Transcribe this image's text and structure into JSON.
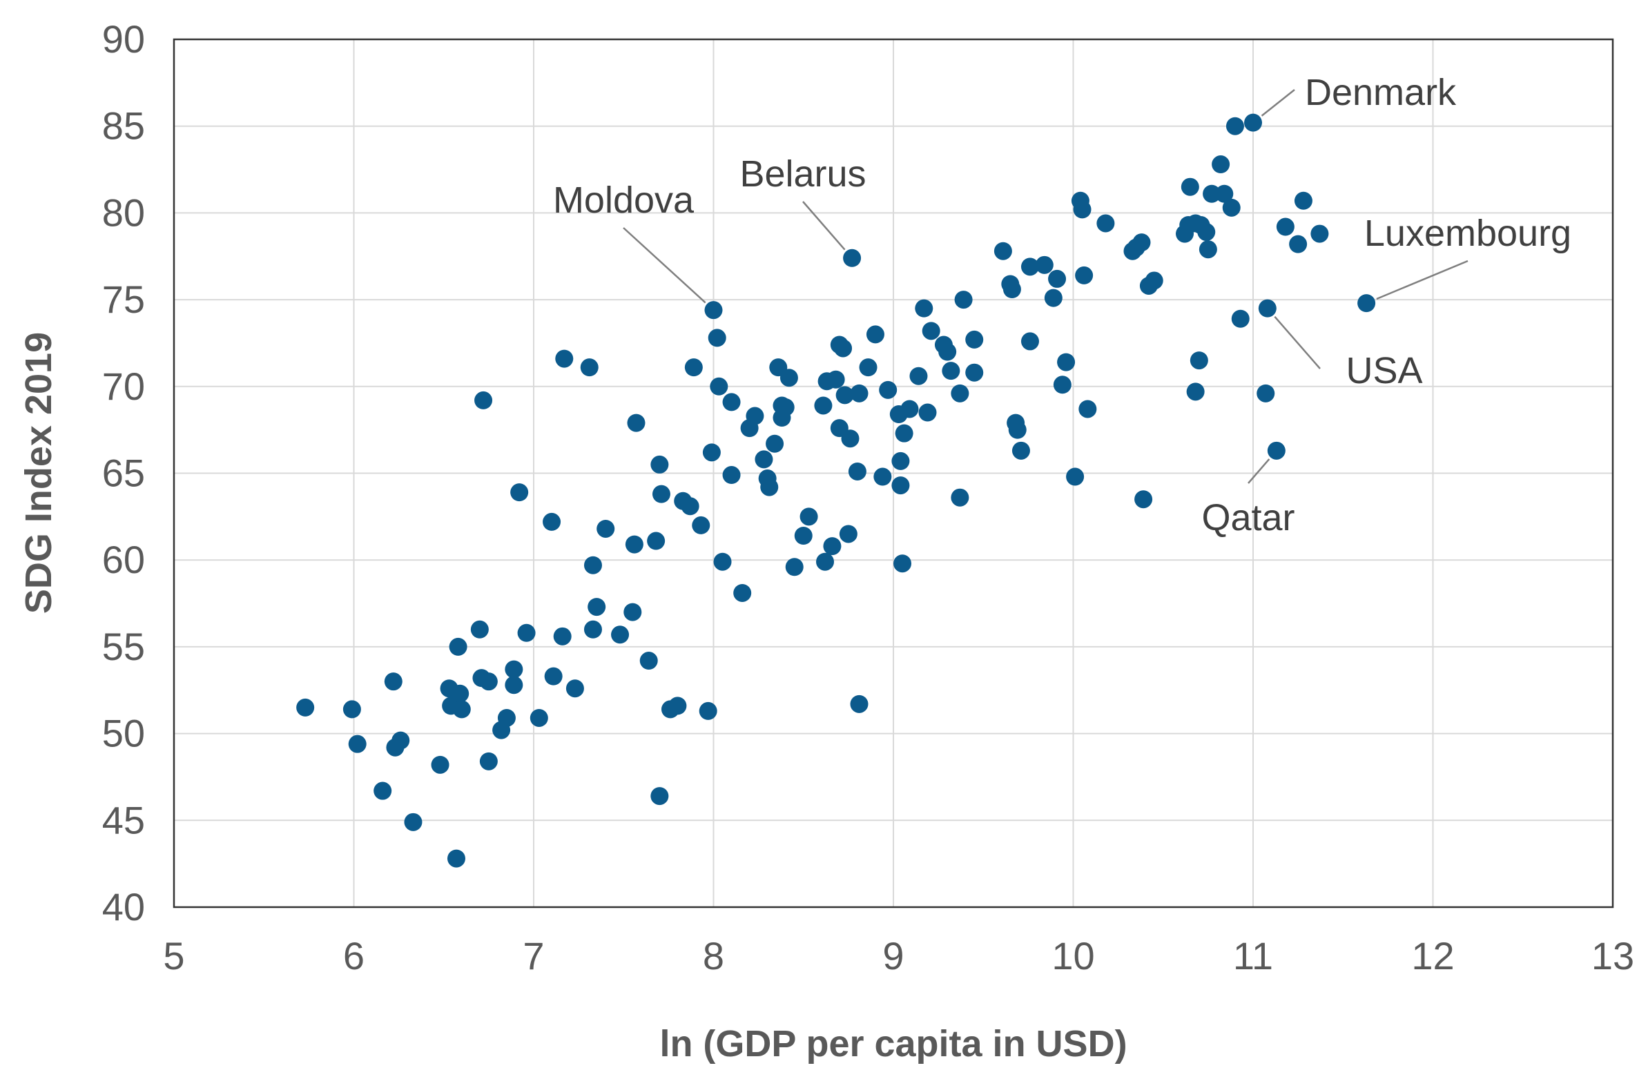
{
  "chart_data": {
    "type": "scatter",
    "title": "",
    "xlabel": "ln (GDP per capita in USD)",
    "ylabel": "SDG Index 2019",
    "xlim": [
      5,
      13
    ],
    "ylim": [
      40,
      90
    ],
    "x_ticks": [
      "5",
      "6",
      "7",
      "8",
      "9",
      "10",
      "11",
      "12",
      "13"
    ],
    "y_ticks": [
      "40",
      "45",
      "50",
      "55",
      "60",
      "65",
      "70",
      "75",
      "80",
      "85",
      "90"
    ],
    "grid": true,
    "point_color": "#0c5a8c",
    "annotations": [
      {
        "label": "Denmark",
        "x": 11.0,
        "y": 85.2
      },
      {
        "label": "Belarus",
        "x": 8.77,
        "y": 77.4
      },
      {
        "label": "Moldova",
        "x": 8.0,
        "y": 74.4
      },
      {
        "label": "Luxembourg",
        "x": 11.63,
        "y": 74.8
      },
      {
        "label": "USA",
        "x": 11.08,
        "y": 74.5
      },
      {
        "label": "Qatar",
        "x": 11.13,
        "y": 66.3
      }
    ],
    "points": [
      [
        5.73,
        51.5
      ],
      [
        5.99,
        51.4
      ],
      [
        6.02,
        49.4
      ],
      [
        6.16,
        46.7
      ],
      [
        6.22,
        53.0
      ],
      [
        6.23,
        49.2
      ],
      [
        6.26,
        49.6
      ],
      [
        6.33,
        44.9
      ],
      [
        6.48,
        48.2
      ],
      [
        6.53,
        52.6
      ],
      [
        6.54,
        51.6
      ],
      [
        6.57,
        42.8
      ],
      [
        6.58,
        55.0
      ],
      [
        6.59,
        52.3
      ],
      [
        6.6,
        51.4
      ],
      [
        6.7,
        56.0
      ],
      [
        6.71,
        53.2
      ],
      [
        6.72,
        69.2
      ],
      [
        6.75,
        53.0
      ],
      [
        6.75,
        48.4
      ],
      [
        6.82,
        50.2
      ],
      [
        6.85,
        50.9
      ],
      [
        6.89,
        53.7
      ],
      [
        6.89,
        52.8
      ],
      [
        6.92,
        63.9
      ],
      [
        6.96,
        55.8
      ],
      [
        7.03,
        50.9
      ],
      [
        7.1,
        62.2
      ],
      [
        7.11,
        53.3
      ],
      [
        7.16,
        55.6
      ],
      [
        7.17,
        71.6
      ],
      [
        7.23,
        52.6
      ],
      [
        7.31,
        71.1
      ],
      [
        7.33,
        59.7
      ],
      [
        7.33,
        56.0
      ],
      [
        7.35,
        57.3
      ],
      [
        7.4,
        61.8
      ],
      [
        7.48,
        55.7
      ],
      [
        7.55,
        57.0
      ],
      [
        7.56,
        60.9
      ],
      [
        7.57,
        67.9
      ],
      [
        7.64,
        54.2
      ],
      [
        7.68,
        61.1
      ],
      [
        7.7,
        46.4
      ],
      [
        7.7,
        65.5
      ],
      [
        7.71,
        63.8
      ],
      [
        7.76,
        51.4
      ],
      [
        7.8,
        51.6
      ],
      [
        7.83,
        63.4
      ],
      [
        7.87,
        63.1
      ],
      [
        7.89,
        71.1
      ],
      [
        7.93,
        62.0
      ],
      [
        7.97,
        51.3
      ],
      [
        7.99,
        66.2
      ],
      [
        8.0,
        74.4
      ],
      [
        8.02,
        72.8
      ],
      [
        8.03,
        70.0
      ],
      [
        8.05,
        59.9
      ],
      [
        8.1,
        69.1
      ],
      [
        8.1,
        64.9
      ],
      [
        8.16,
        58.1
      ],
      [
        8.2,
        67.6
      ],
      [
        8.23,
        68.3
      ],
      [
        8.28,
        65.8
      ],
      [
        8.3,
        64.7
      ],
      [
        8.31,
        64.2
      ],
      [
        8.34,
        66.7
      ],
      [
        8.36,
        71.1
      ],
      [
        8.38,
        68.9
      ],
      [
        8.38,
        68.2
      ],
      [
        8.4,
        68.8
      ],
      [
        8.42,
        70.5
      ],
      [
        8.45,
        59.6
      ],
      [
        8.5,
        61.4
      ],
      [
        8.53,
        62.5
      ],
      [
        8.61,
        68.9
      ],
      [
        8.62,
        59.9
      ],
      [
        8.63,
        70.3
      ],
      [
        8.66,
        60.8
      ],
      [
        8.68,
        70.4
      ],
      [
        8.7,
        72.4
      ],
      [
        8.7,
        67.6
      ],
      [
        8.72,
        72.2
      ],
      [
        8.73,
        69.5
      ],
      [
        8.75,
        61.5
      ],
      [
        8.76,
        67.0
      ],
      [
        8.77,
        77.4
      ],
      [
        8.8,
        65.1
      ],
      [
        8.81,
        51.7
      ],
      [
        8.81,
        69.6
      ],
      [
        8.86,
        71.1
      ],
      [
        8.9,
        73.0
      ],
      [
        8.94,
        64.8
      ],
      [
        8.97,
        69.8
      ],
      [
        9.03,
        68.4
      ],
      [
        9.04,
        64.3
      ],
      [
        9.04,
        65.7
      ],
      [
        9.05,
        59.8
      ],
      [
        9.06,
        67.3
      ],
      [
        9.09,
        68.7
      ],
      [
        9.14,
        70.6
      ],
      [
        9.17,
        74.5
      ],
      [
        9.19,
        68.5
      ],
      [
        9.21,
        73.2
      ],
      [
        9.28,
        72.4
      ],
      [
        9.3,
        72.0
      ],
      [
        9.32,
        70.9
      ],
      [
        9.37,
        63.6
      ],
      [
        9.37,
        69.6
      ],
      [
        9.39,
        75.0
      ],
      [
        9.45,
        72.7
      ],
      [
        9.45,
        70.8
      ],
      [
        9.61,
        77.8
      ],
      [
        9.65,
        75.9
      ],
      [
        9.66,
        75.6
      ],
      [
        9.68,
        67.9
      ],
      [
        9.69,
        67.5
      ],
      [
        9.71,
        66.3
      ],
      [
        9.76,
        72.6
      ],
      [
        9.76,
        76.9
      ],
      [
        9.84,
        77.0
      ],
      [
        9.89,
        75.1
      ],
      [
        9.91,
        76.2
      ],
      [
        9.94,
        70.1
      ],
      [
        9.96,
        71.4
      ],
      [
        10.01,
        64.8
      ],
      [
        10.04,
        80.7
      ],
      [
        10.05,
        80.2
      ],
      [
        10.06,
        76.4
      ],
      [
        10.08,
        68.7
      ],
      [
        10.18,
        79.4
      ],
      [
        10.33,
        77.8
      ],
      [
        10.35,
        78.0
      ],
      [
        10.38,
        78.3
      ],
      [
        10.39,
        63.5
      ],
      [
        10.42,
        75.8
      ],
      [
        10.45,
        76.1
      ],
      [
        10.62,
        78.8
      ],
      [
        10.64,
        79.3
      ],
      [
        10.65,
        81.5
      ],
      [
        10.68,
        69.7
      ],
      [
        10.68,
        79.4
      ],
      [
        10.7,
        71.5
      ],
      [
        10.71,
        79.3
      ],
      [
        10.74,
        78.9
      ],
      [
        10.75,
        77.9
      ],
      [
        10.77,
        81.1
      ],
      [
        10.82,
        82.8
      ],
      [
        10.84,
        81.1
      ],
      [
        10.88,
        80.3
      ],
      [
        10.9,
        85.0
      ],
      [
        10.93,
        73.9
      ],
      [
        11.0,
        85.2
      ],
      [
        11.07,
        69.6
      ],
      [
        11.08,
        74.5
      ],
      [
        11.13,
        66.3
      ],
      [
        11.18,
        79.2
      ],
      [
        11.25,
        78.2
      ],
      [
        11.28,
        80.7
      ],
      [
        11.37,
        78.8
      ],
      [
        11.63,
        74.8
      ]
    ]
  }
}
